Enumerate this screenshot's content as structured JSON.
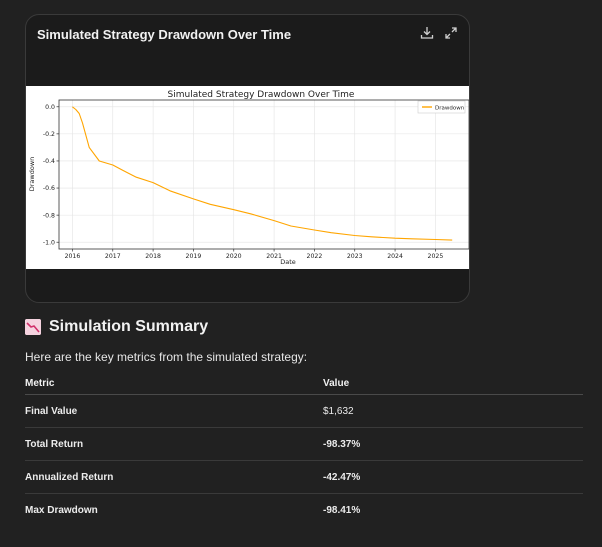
{
  "card": {
    "title": "Simulated Strategy Drawdown Over Time",
    "icons": [
      "download-icon",
      "expand-icon"
    ]
  },
  "chart_data": {
    "type": "line",
    "title": "Simulated Strategy Drawdown Over Time",
    "xlabel": "Date",
    "ylabel": "Drawdown",
    "x_ticks": [
      "2016",
      "2017",
      "2018",
      "2019",
      "2020",
      "2021",
      "2022",
      "2023",
      "2024",
      "2025"
    ],
    "y_ticks": [
      "0.0",
      "-0.2",
      "-0.4",
      "-0.6",
      "-0.8",
      "-1.0"
    ],
    "xlim": [
      "2015-09",
      "2025-11"
    ],
    "ylim": [
      -1.05,
      0.05
    ],
    "grid": true,
    "legend_position": "top-right",
    "series": [
      {
        "name": "Drawdown",
        "color": "#ffa500",
        "x": [
          "2016-01",
          "2016-02",
          "2016-03",
          "2016-04",
          "2016-06",
          "2016-09",
          "2017-01",
          "2017-04",
          "2017-08",
          "2018-01",
          "2018-06",
          "2019-01",
          "2019-06",
          "2020-01",
          "2020-06",
          "2021-01",
          "2021-06",
          "2022-01",
          "2022-06",
          "2023-01",
          "2023-06",
          "2024-01",
          "2024-06",
          "2025-01",
          "2025-06"
        ],
        "values": [
          0.0,
          -0.02,
          -0.05,
          -0.12,
          -0.3,
          -0.4,
          -0.43,
          -0.47,
          -0.52,
          -0.56,
          -0.62,
          -0.68,
          -0.72,
          -0.76,
          -0.79,
          -0.84,
          -0.88,
          -0.91,
          -0.93,
          -0.95,
          -0.96,
          -0.97,
          -0.975,
          -0.98,
          -0.984
        ]
      }
    ]
  },
  "summary": {
    "heading": "Simulation Summary",
    "intro": "Here are the key metrics from the simulated strategy:",
    "columns": [
      "Metric",
      "Value"
    ],
    "rows": [
      {
        "metric": "Final Value",
        "value": "$1,632"
      },
      {
        "metric": "Total Return",
        "value": "-98.37%"
      },
      {
        "metric": "Annualized Return",
        "value": "-42.47%"
      },
      {
        "metric": "Max Drawdown",
        "value": "-98.41%"
      }
    ]
  }
}
